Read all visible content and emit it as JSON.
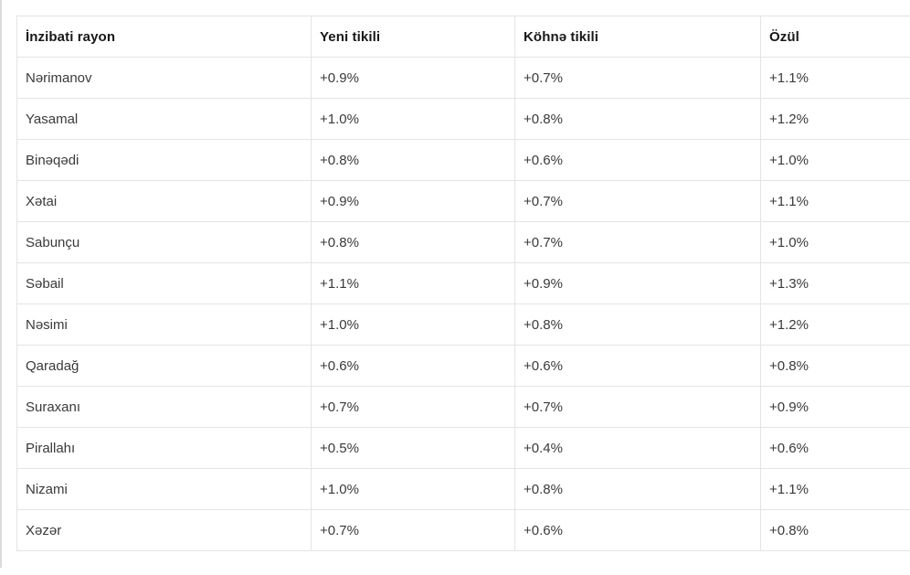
{
  "chart_data": {
    "type": "table",
    "title": "",
    "columns": [
      "İnzibati rayon",
      "Yeni tikili",
      "Köhnə tikili",
      "Özül"
    ],
    "rows": [
      [
        "Nərimanov",
        "+0.9%",
        "+0.7%",
        "+1.1%"
      ],
      [
        "Yasamal",
        "+1.0%",
        "+0.8%",
        "+1.2%"
      ],
      [
        "Binəqədi",
        "+0.8%",
        "+0.6%",
        "+1.0%"
      ],
      [
        "Xətai",
        "+0.9%",
        "+0.7%",
        "+1.1%"
      ],
      [
        "Sabunçu",
        "+0.8%",
        "+0.7%",
        "+1.0%"
      ],
      [
        "Səbail",
        "+1.1%",
        "+0.9%",
        "+1.3%"
      ],
      [
        "Nəsimi",
        "+1.0%",
        "+0.8%",
        "+1.2%"
      ],
      [
        "Qaradağ",
        "+0.6%",
        "+0.6%",
        "+0.8%"
      ],
      [
        "Suraxanı",
        "+0.7%",
        "+0.7%",
        "+0.9%"
      ],
      [
        "Pirallahı",
        "+0.5%",
        "+0.4%",
        "+0.6%"
      ],
      [
        "Nizami",
        "+1.0%",
        "+0.8%",
        "+1.1%"
      ],
      [
        "Xəzər",
        "+0.7%",
        "+0.6%",
        "+0.8%"
      ]
    ]
  },
  "colors": {
    "border": "#e4e4e7",
    "header_text": "#18181b",
    "body_text": "#3a3a3e",
    "background": "#ffffff"
  }
}
